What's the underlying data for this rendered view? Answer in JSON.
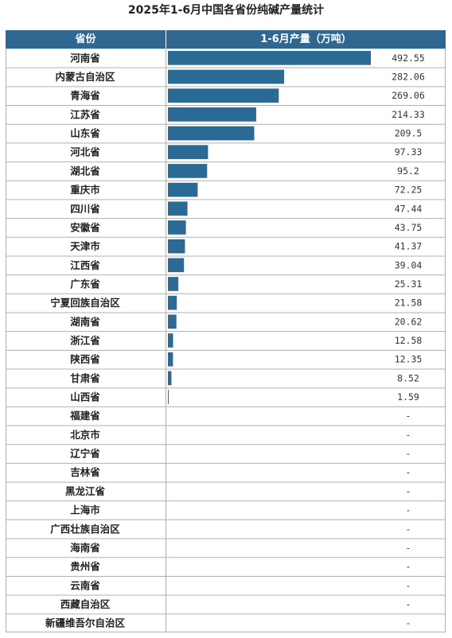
{
  "title": "2025年1-6月中国各省份纯碱产量统计",
  "header": {
    "province": "省份",
    "production": "1-6月产量（万吨）"
  },
  "colors": {
    "bar": "#2a6a94",
    "header_bg": "#2f6791",
    "grid": "#b0b0b0"
  },
  "chart_data": {
    "type": "table",
    "categories": [
      "河南省",
      "内蒙古自治区",
      "青海省",
      "江苏省",
      "山东省",
      "河北省",
      "湖北省",
      "重庆市",
      "四川省",
      "安徽省",
      "天津市",
      "江西省",
      "广东省",
      "宁夏回族自治区",
      "湖南省",
      "浙江省",
      "陕西省",
      "甘肃省",
      "山西省",
      "福建省",
      "北京市",
      "辽宁省",
      "吉林省",
      "黑龙江省",
      "上海市",
      "广西壮族自治区",
      "海南省",
      "贵州省",
      "云南省",
      "西藏自治区",
      "新疆维吾尔自治区"
    ],
    "values": [
      492.55,
      282.06,
      269.06,
      214.33,
      209.5,
      97.33,
      95.2,
      72.25,
      47.44,
      43.75,
      41.37,
      39.04,
      25.31,
      21.58,
      20.62,
      12.58,
      12.35,
      8.52,
      1.59,
      null,
      null,
      null,
      null,
      null,
      null,
      null,
      null,
      null,
      null,
      null,
      null
    ],
    "value_labels": [
      "492.55",
      "282.06",
      "269.06",
      "214.33",
      "209.5",
      "97.33",
      "95.2",
      "72.25",
      "47.44",
      "43.75",
      "41.37",
      "39.04",
      "25.31",
      "21.58",
      "20.62",
      "12.58",
      "12.35",
      "8.52",
      "1.59",
      "-",
      "-",
      "-",
      "-",
      "-",
      "-",
      "-",
      "-",
      "-",
      "-",
      "-",
      "-"
    ]
  }
}
